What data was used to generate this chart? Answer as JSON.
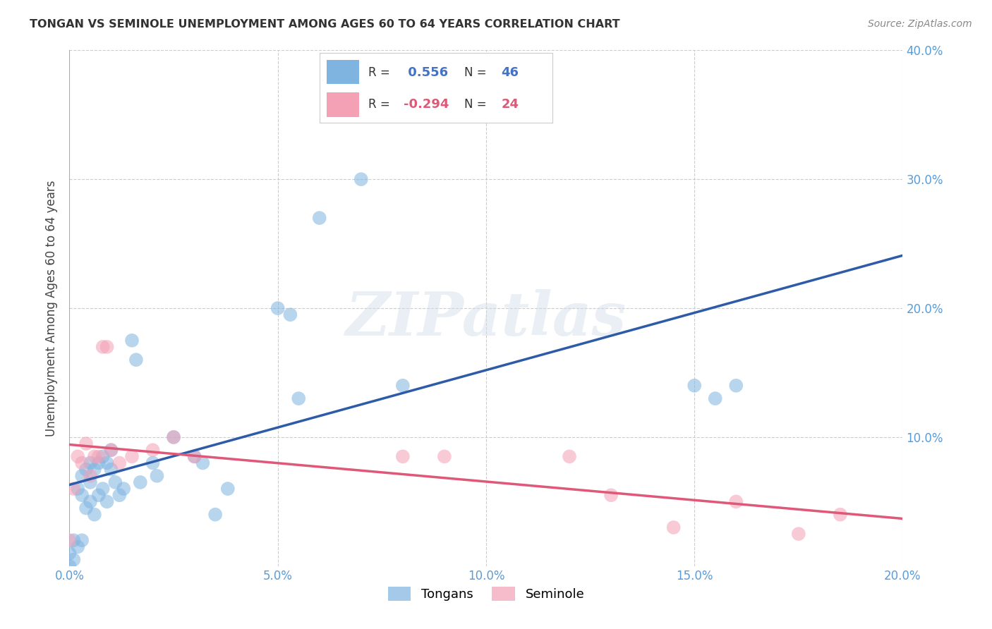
{
  "title": "TONGAN VS SEMINOLE UNEMPLOYMENT AMONG AGES 60 TO 64 YEARS CORRELATION CHART",
  "source": "Source: ZipAtlas.com",
  "ylabel": "Unemployment Among Ages 60 to 64 years",
  "xlim": [
    0.0,
    0.2
  ],
  "ylim": [
    0.0,
    0.4
  ],
  "xticks": [
    0.0,
    0.05,
    0.1,
    0.15,
    0.2
  ],
  "yticks": [
    0.1,
    0.2,
    0.3,
    0.4
  ],
  "xticklabels": [
    "0.0%",
    "5.0%",
    "10.0%",
    "15.0%",
    "20.0%"
  ],
  "yticklabels": [
    "10.0%",
    "20.0%",
    "30.0%",
    "40.0%"
  ],
  "blue_R": 0.556,
  "blue_N": 46,
  "pink_R": -0.294,
  "pink_N": 24,
  "blue_color": "#7FB3E0",
  "pink_color": "#F4A0B5",
  "blue_line_color": "#2E5BA8",
  "pink_line_color": "#E05878",
  "watermark": "ZIPatlas",
  "tongans_x": [
    0.0,
    0.0,
    0.001,
    0.001,
    0.002,
    0.002,
    0.003,
    0.003,
    0.003,
    0.004,
    0.004,
    0.005,
    0.005,
    0.005,
    0.006,
    0.006,
    0.007,
    0.007,
    0.008,
    0.008,
    0.009,
    0.009,
    0.01,
    0.01,
    0.011,
    0.012,
    0.013,
    0.015,
    0.016,
    0.017,
    0.02,
    0.021,
    0.025,
    0.03,
    0.032,
    0.035,
    0.038,
    0.05,
    0.053,
    0.055,
    0.06,
    0.07,
    0.08,
    0.15,
    0.155,
    0.16
  ],
  "tongans_y": [
    0.0,
    0.01,
    0.005,
    0.02,
    0.015,
    0.06,
    0.02,
    0.055,
    0.07,
    0.045,
    0.075,
    0.05,
    0.065,
    0.08,
    0.04,
    0.075,
    0.055,
    0.08,
    0.06,
    0.085,
    0.05,
    0.08,
    0.075,
    0.09,
    0.065,
    0.055,
    0.06,
    0.175,
    0.16,
    0.065,
    0.08,
    0.07,
    0.1,
    0.085,
    0.08,
    0.04,
    0.06,
    0.2,
    0.195,
    0.13,
    0.27,
    0.3,
    0.14,
    0.14,
    0.13,
    0.14
  ],
  "seminole_x": [
    0.0,
    0.001,
    0.002,
    0.003,
    0.004,
    0.005,
    0.006,
    0.007,
    0.008,
    0.009,
    0.01,
    0.012,
    0.015,
    0.02,
    0.025,
    0.03,
    0.08,
    0.09,
    0.12,
    0.13,
    0.145,
    0.16,
    0.175,
    0.185
  ],
  "seminole_y": [
    0.02,
    0.06,
    0.085,
    0.08,
    0.095,
    0.07,
    0.085,
    0.085,
    0.17,
    0.17,
    0.09,
    0.08,
    0.085,
    0.09,
    0.1,
    0.085,
    0.085,
    0.085,
    0.085,
    0.055,
    0.03,
    0.05,
    0.025,
    0.04
  ]
}
